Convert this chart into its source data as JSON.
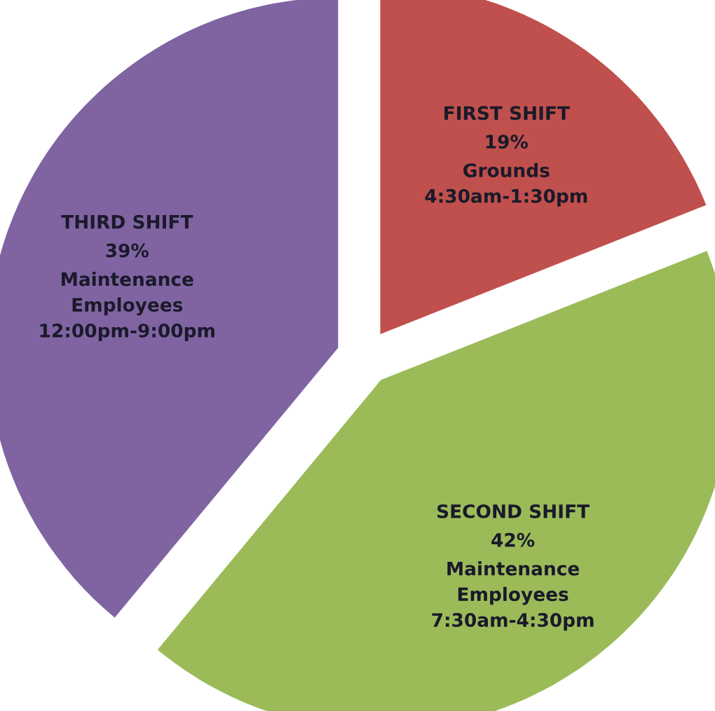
{
  "chart_data": {
    "type": "pie",
    "categories": [
      "FIRST SHIFT",
      "SECOND SHIFT",
      "THIRD SHIFT"
    ],
    "values": [
      19,
      42,
      39
    ],
    "value_labels": [
      "19%",
      "42%",
      "39%"
    ],
    "colors": [
      "#c0504d",
      "#9bbb59",
      "#8064a2"
    ],
    "annotations": [
      "Grounds\n4:30am-1:30pm",
      "Maintenance\nEmployees\n7:30am-4:30pm",
      "Maintenance\nEmployees\n12:00pm-9:00pm"
    ],
    "legend": false
  }
}
